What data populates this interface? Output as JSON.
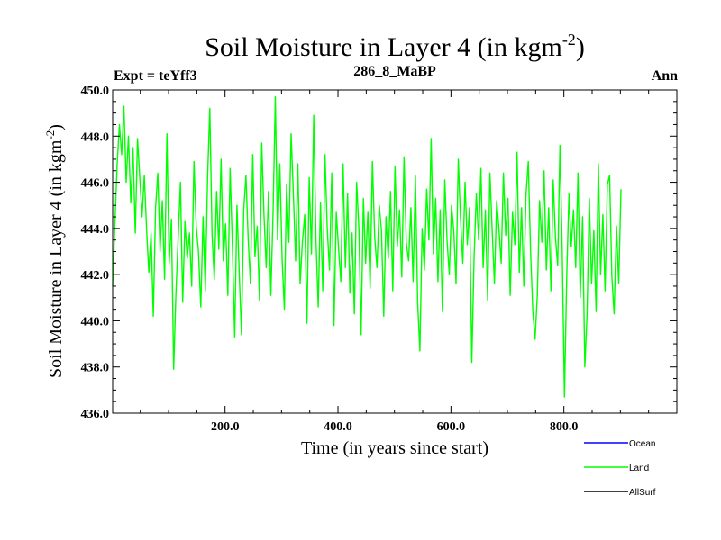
{
  "chart_data": {
    "type": "line",
    "title": "Soil Moisture in Layer 4 (in kgm",
    "title_sup": "-2",
    "title_close": ")",
    "subtitle_left": "Expt = teYff3",
    "subtitle_center": "286_8_MaBP",
    "subtitle_right": "Ann",
    "xlabel": "Time (in years since start)",
    "ylabel": "Soil Moisture in Layer 4 (in kgm",
    "ylabel_sup": "-2",
    "ylabel_close": ")",
    "xlim": [
      1,
      1000
    ],
    "ylim": [
      436.0,
      450.0
    ],
    "x_ticks": [
      200,
      400,
      600,
      800
    ],
    "x_tick_labels": [
      "200.0",
      "400.0",
      "600.0",
      "800.0"
    ],
    "y_ticks": [
      436,
      438,
      440,
      442,
      444,
      446,
      448,
      450
    ],
    "y_tick_labels": [
      "436.0",
      "438.0",
      "440.0",
      "442.0",
      "444.0",
      "446.0",
      "448.0",
      "450.0"
    ],
    "legend": [
      {
        "name": "Ocean",
        "color": "#0000ff"
      },
      {
        "name": "Land",
        "color": "#00ff00"
      },
      {
        "name": "AllSurf",
        "color": "#000000"
      }
    ],
    "series": [
      {
        "name": "Land",
        "color": "#00ff00",
        "x_start": 1,
        "x_step": 4,
        "values": [
          441.5,
          444.2,
          446.8,
          448.5,
          447.2,
          449.3,
          446.0,
          448.0,
          445.1,
          447.5,
          443.8,
          447.9,
          446.2,
          444.5,
          446.3,
          444.0,
          442.1,
          443.8,
          440.2,
          444.9,
          446.4,
          443.0,
          445.2,
          441.8,
          448.1,
          442.5,
          444.4,
          437.9,
          441.2,
          443.6,
          446.0,
          440.8,
          444.3,
          442.7,
          443.8,
          441.5,
          446.9,
          444.1,
          443.0,
          440.6,
          444.5,
          441.3,
          446.2,
          449.2,
          443.7,
          441.8,
          445.6,
          443.1,
          447.0,
          442.6,
          444.2,
          441.1,
          446.6,
          443.3,
          439.3,
          445.0,
          442.1,
          439.4,
          444.8,
          446.3,
          443.5,
          441.6,
          447.2,
          442.8,
          444.1,
          440.9,
          447.7,
          444.6,
          442.3,
          445.6,
          441.1,
          444.7,
          449.7,
          443.5,
          446.8,
          442.7,
          440.5,
          445.9,
          443.4,
          448.1,
          445.5,
          442.6,
          446.8,
          441.6,
          443.4,
          444.6,
          439.9,
          446.2,
          442.9,
          448.9,
          443.5,
          440.6,
          445.1,
          441.3,
          447.2,
          444.0,
          442.2,
          446.4,
          439.8,
          444.7,
          443.1,
          441.7,
          446.8,
          442.3,
          445.5,
          441.2,
          443.8,
          440.3,
          446.0,
          444.0,
          439.4,
          445.3,
          442.5,
          444.7,
          441.4,
          446.9,
          443.6,
          442.3,
          445.0,
          443.9,
          440.2,
          444.5,
          442.7,
          445.6,
          441.3,
          446.7,
          443.2,
          444.8,
          441.9,
          447.1,
          443.4,
          442.6,
          444.9,
          441.7,
          446.3,
          440.8,
          438.7,
          444.0,
          442.2,
          445.7,
          443.5,
          447.9,
          442.9,
          445.3,
          441.7,
          444.8,
          440.4,
          446.1,
          443.5,
          442.0,
          445.0,
          443.9,
          441.6,
          447.0,
          444.4,
          442.5,
          446.0,
          443.3,
          444.9,
          438.2,
          442.7,
          445.5,
          443.5,
          446.6,
          442.3,
          444.8,
          440.9,
          446.4,
          443.9,
          441.6,
          445.2,
          444.0,
          442.5,
          446.4,
          443.7,
          445.3,
          441.1,
          444.7,
          443.3,
          447.3,
          442.1,
          444.9,
          441.5,
          445.5,
          446.9,
          443.0,
          440.4,
          439.2,
          441.1,
          445.2,
          443.4,
          446.5,
          442.2,
          444.9,
          441.3,
          446.1,
          443.6,
          442.4,
          447.6,
          443.1,
          436.7,
          441.9,
          445.5,
          443.2,
          444.8,
          442.3,
          446.4,
          441.0,
          444.5,
          438.0,
          440.3,
          445.3,
          441.6,
          443.9,
          440.4,
          446.8,
          442.0,
          444.6,
          441.3,
          445.9,
          446.3,
          441.9,
          440.3,
          444.1,
          441.6,
          445.7
        ]
      }
    ]
  }
}
